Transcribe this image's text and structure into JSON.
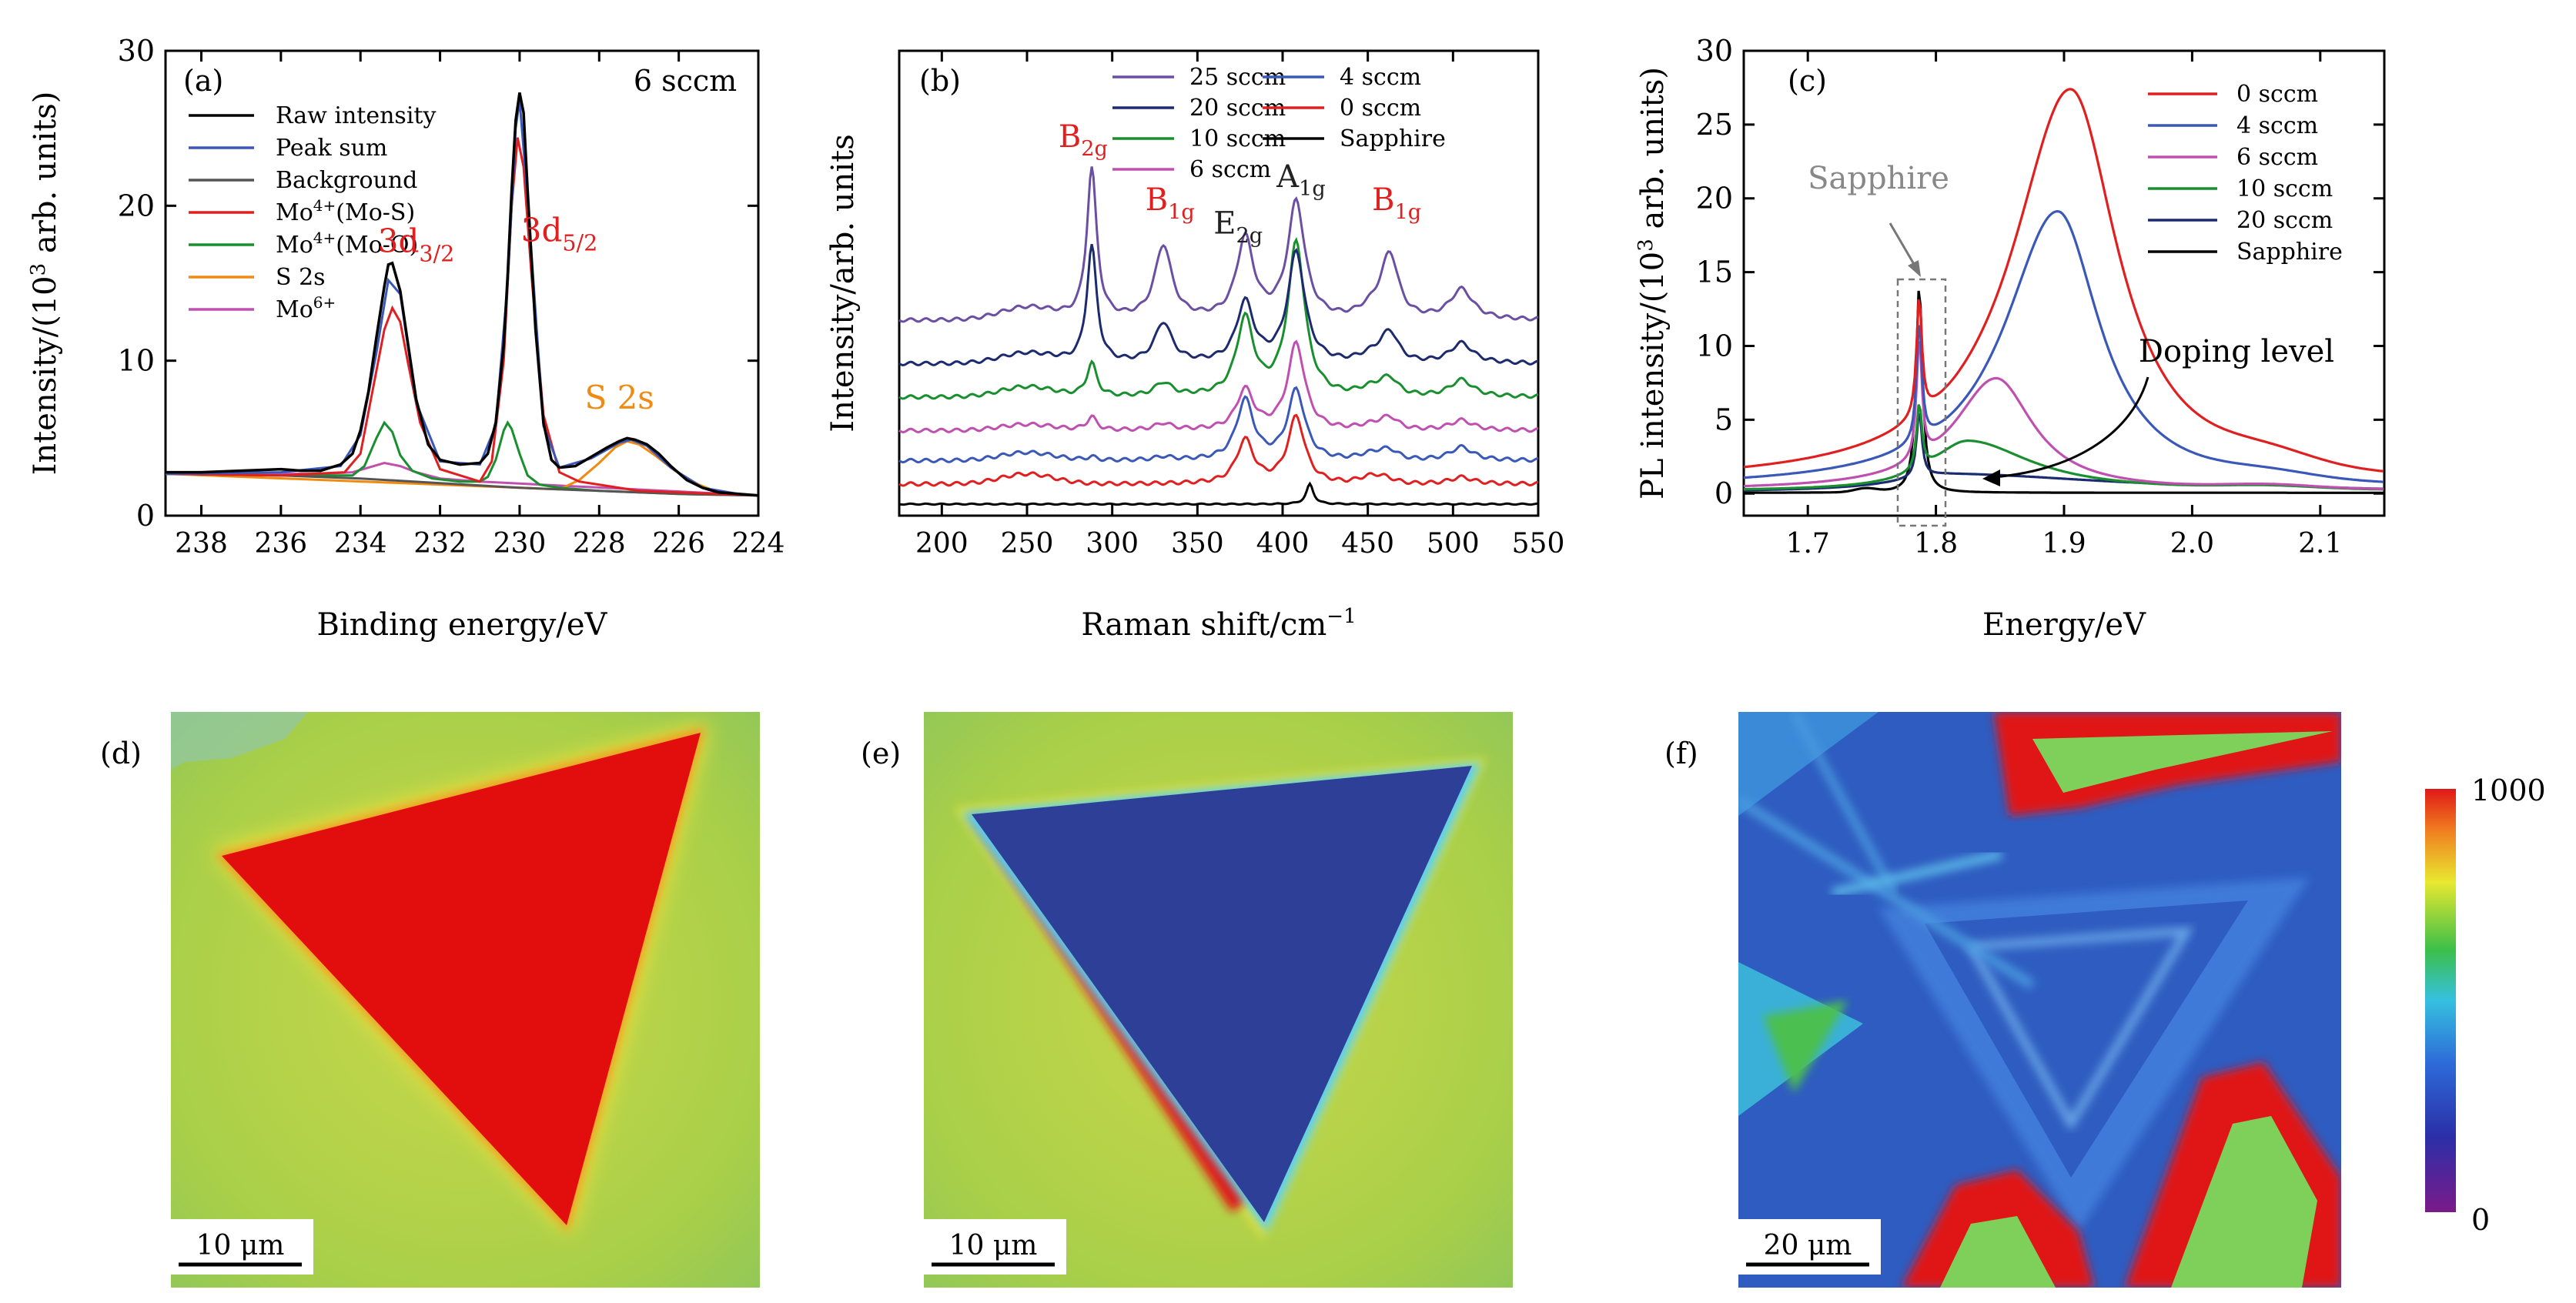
{
  "chart_data": [
    {
      "panel": "(a)",
      "type": "line",
      "annotation": "6 sccm",
      "xlabel": "Binding energy/eV",
      "ylabel_main": "Intensity/(10",
      "ylabel_sup": "3",
      "ylabel_tail": " arb. units)",
      "xlim": [
        238.9,
        224
      ],
      "ylim": [
        0,
        30
      ],
      "xticks": [
        238,
        236,
        234,
        232,
        230,
        228,
        226,
        224
      ],
      "yticks": [
        0,
        10,
        20,
        30
      ],
      "legend": [
        {
          "label": "Raw intensity",
          "color": "#000000"
        },
        {
          "label": "Peak sum",
          "color": "#3a58b8"
        },
        {
          "label": "Background",
          "color": "#555555"
        },
        {
          "label": "Mo4+(Mo-S)",
          "color": "#e02020"
        },
        {
          "label": "Mo4+(Mo-O)",
          "color": "#1a8f2f"
        },
        {
          "label": "S 2s",
          "color": "#f08a10"
        },
        {
          "label": "Mo6+",
          "color": "#c050b0"
        }
      ],
      "peak_labels": [
        {
          "text": "3d",
          "sub": "3/2",
          "x": 232.5,
          "y": 17,
          "color": "#e02020"
        },
        {
          "text": "3d",
          "sub": "5/2",
          "x": 228.9,
          "y": 17.7,
          "color": "#e02020"
        },
        {
          "text": "S 2s",
          "sub": "",
          "x": 227.3,
          "y": 6.9,
          "color": "#f08a10"
        }
      ],
      "series": [
        {
          "name": "Raw intensity",
          "color": "#000000",
          "x": [
            238.9,
            238,
            237,
            236,
            235.5,
            235,
            234.5,
            234.2,
            234,
            233.8,
            233.6,
            233.4,
            233.3,
            233.2,
            233.0,
            232.8,
            232.6,
            232.3,
            232,
            231.5,
            231,
            230.8,
            230.6,
            230.4,
            230.3,
            230.2,
            230.1,
            230.0,
            229.9,
            229.8,
            229.6,
            229.4,
            229.2,
            229,
            228.6,
            228.2,
            227.8,
            227.5,
            227.3,
            227.1,
            226.8,
            226.5,
            226.2,
            225.8,
            225.4,
            225,
            224.5,
            224
          ],
          "y": [
            2.8,
            2.8,
            2.9,
            3.0,
            2.9,
            2.9,
            3.3,
            4.0,
            5.5,
            8.0,
            11.5,
            14.8,
            16.2,
            16.3,
            14.5,
            11.0,
            7.5,
            4.6,
            3.6,
            3.3,
            3.4,
            4.0,
            6.0,
            11.0,
            15.5,
            21.0,
            25.5,
            27.3,
            26.0,
            21.0,
            12.0,
            6.0,
            3.6,
            3.1,
            3.2,
            3.8,
            4.4,
            4.8,
            5.0,
            4.9,
            4.6,
            4.0,
            3.2,
            2.3,
            1.8,
            1.5,
            1.4,
            1.3
          ]
        },
        {
          "name": "Peak sum",
          "color": "#3a58b8",
          "x": [
            238.9,
            236,
            234.5,
            234,
            233.6,
            233.3,
            233.0,
            232.6,
            232,
            231,
            230.6,
            230.3,
            230.1,
            230.0,
            229.8,
            229.4,
            229,
            228.2,
            227.5,
            227.2,
            226.8,
            226.2,
            225.4,
            224.5,
            224
          ],
          "y": [
            2.7,
            2.8,
            3.2,
            5.2,
            10.5,
            15.2,
            14.3,
            7.3,
            3.5,
            3.3,
            5.8,
            15.0,
            25.0,
            26.8,
            20.5,
            5.8,
            3.1,
            3.7,
            4.7,
            4.9,
            4.5,
            3.1,
            1.8,
            1.4,
            1.3
          ]
        },
        {
          "name": "Background",
          "color": "#555555",
          "x": [
            238.9,
            236,
            234,
            232,
            230,
            228,
            226,
            224
          ],
          "y": [
            2.7,
            2.6,
            2.4,
            2.1,
            1.8,
            1.6,
            1.4,
            1.3
          ]
        },
        {
          "name": "Mo4+(Mo-S)",
          "color": "#e02020",
          "x": [
            238.9,
            236,
            234.4,
            234,
            233.7,
            233.4,
            233.2,
            233.0,
            232.8,
            232.5,
            232,
            231,
            230.7,
            230.4,
            230.2,
            230.05,
            229.9,
            229.7,
            229.4,
            229,
            228.5,
            227,
            225,
            224
          ],
          "y": [
            2.7,
            2.6,
            2.8,
            4.0,
            8.0,
            12.0,
            13.4,
            12.5,
            9.8,
            6.0,
            3.0,
            2.2,
            3.5,
            10.0,
            20.0,
            24.4,
            22.5,
            15.5,
            6.5,
            2.8,
            2.2,
            1.6,
            1.4,
            1.3
          ]
        },
        {
          "name": "Mo4+(Mo-O)",
          "color": "#1a8f2f",
          "x": [
            238.9,
            236,
            234.2,
            233.9,
            233.6,
            233.4,
            233.2,
            233.0,
            232.7,
            232.2,
            231.5,
            231,
            230.8,
            230.6,
            230.4,
            230.3,
            230.2,
            230.0,
            229.8,
            229.5,
            229,
            228,
            226,
            224
          ],
          "y": [
            2.7,
            2.6,
            2.6,
            3.2,
            5.0,
            6.0,
            5.4,
            3.9,
            2.9,
            2.4,
            2.2,
            2.2,
            2.5,
            3.6,
            5.5,
            6.0,
            5.6,
            4.0,
            2.6,
            2.0,
            1.8,
            1.6,
            1.4,
            1.3
          ]
        },
        {
          "name": "S 2s",
          "color": "#f08a10",
          "x": [
            238.9,
            229,
            228.5,
            228,
            227.6,
            227.3,
            227.0,
            226.6,
            226.1,
            225.5,
            225,
            224
          ],
          "y": [
            2.7,
            1.7,
            2.3,
            3.4,
            4.4,
            4.8,
            4.6,
            3.9,
            2.9,
            2.0,
            1.5,
            1.3
          ]
        },
        {
          "name": "Mo6+",
          "color": "#c050b0",
          "x": [
            238.9,
            235,
            234.2,
            233.8,
            233.4,
            233.0,
            232.6,
            232.0,
            231,
            224
          ],
          "y": [
            2.7,
            2.7,
            2.8,
            3.1,
            3.4,
            3.2,
            2.8,
            2.4,
            2.2,
            1.3
          ]
        }
      ]
    },
    {
      "panel": "(b)",
      "type": "line",
      "xlabel": "Raman shift/cm",
      "xlabel_sup": "−1",
      "ylabel": "Intensity/arb. units",
      "xlim": [
        175,
        550
      ],
      "ylim": [
        0,
        13
      ],
      "xticks": [
        200,
        250,
        300,
        350,
        400,
        450,
        500,
        550
      ],
      "legend": [
        {
          "label": "25 sccm",
          "color": "#6a4fa3"
        },
        {
          "label": "20 sccm",
          "color": "#1c2a6e"
        },
        {
          "label": "10 sccm",
          "color": "#1a8f2f"
        },
        {
          "label": "6 sccm",
          "color": "#c050b0"
        },
        {
          "label": "4 sccm",
          "color": "#3a58b8"
        },
        {
          "label": "0 sccm",
          "color": "#e02020"
        },
        {
          "label": "Sapphire",
          "color": "#000000"
        }
      ],
      "peak_labels": [
        {
          "text": "B",
          "sub": "2g",
          "x": 282,
          "y": 10.7,
          "color": "#e02020"
        },
        {
          "text": "B",
          "sub": "1g",
          "x": 333,
          "y": 8.8,
          "color": "#e02020"
        },
        {
          "text": "E",
          "sub": "2g",
          "x": 373,
          "y": 8.1,
          "color": "#222222"
        },
        {
          "text": "A",
          "sub": "1g",
          "x": 410,
          "y": 9.5,
          "color": "#222222"
        },
        {
          "text": "B",
          "sub": "1g",
          "x": 466,
          "y": 8.8,
          "color": "#e02020"
        }
      ],
      "peak_positions": [
        288,
        330,
        378,
        408,
        463,
        505
      ],
      "series": [
        {
          "name": "25 sccm",
          "color": "#6a4fa3",
          "baseline": 5.5,
          "amps": [
            4.5,
            2.2,
            2.4,
            3.5,
            1.8,
            0.9
          ],
          "broad": 0.6
        },
        {
          "name": "20 sccm",
          "color": "#1c2a6e",
          "baseline": 4.2,
          "amps": [
            3.5,
            1.2,
            1.8,
            3.3,
            0.8,
            0.6
          ],
          "broad": 0.5
        },
        {
          "name": "10 sccm",
          "color": "#1a8f2f",
          "baseline": 3.2,
          "amps": [
            1.0,
            0.4,
            2.3,
            4.6,
            0.4,
            0.5
          ],
          "broad": 0.5
        },
        {
          "name": "6 sccm",
          "color": "#c050b0",
          "baseline": 2.2,
          "amps": [
            0.4,
            0.2,
            1.2,
            2.6,
            0.3,
            0.3
          ],
          "broad": 0.3
        },
        {
          "name": "4 sccm",
          "color": "#3a58b8",
          "baseline": 1.3,
          "amps": [
            0.1,
            0.1,
            1.8,
            2.1,
            0.2,
            0.4
          ],
          "broad": 0.4
        },
        {
          "name": "0 sccm",
          "color": "#e02020",
          "baseline": 0.6,
          "amps": [
            0.0,
            0.0,
            1.3,
            2.0,
            0.0,
            0.2
          ],
          "broad": 0.5
        },
        {
          "name": "Sapphire",
          "color": "#000000",
          "baseline": 0.0,
          "amps": [
            0,
            0,
            0,
            0,
            0,
            0
          ],
          "broad": 0,
          "sapphire": [
            416,
            0.6
          ]
        }
      ]
    },
    {
      "panel": "(c)",
      "type": "line",
      "xlabel": "Energy/eV",
      "ylabel_main": "PL intensity/(10",
      "ylabel_sup": "3",
      "ylabel_tail": " arb. units)",
      "xlim": [
        1.65,
        2.15
      ],
      "ylim": [
        -1.5,
        30
      ],
      "xticks": [
        1.7,
        1.8,
        1.9,
        2.0,
        2.1
      ],
      "yticks": [
        0,
        5,
        10,
        15,
        20,
        25,
        30
      ],
      "legend": [
        {
          "label": "0 sccm",
          "color": "#e02020"
        },
        {
          "label": "4 sccm",
          "color": "#3a58b8"
        },
        {
          "label": "6 sccm",
          "color": "#c050b0"
        },
        {
          "label": "10 sccm",
          "color": "#1a8f2f"
        },
        {
          "label": "20 sccm",
          "color": "#1c2a6e"
        },
        {
          "label": "Sapphire",
          "color": "#000000"
        }
      ],
      "annotations": [
        "Sapphire",
        "Doping level"
      ],
      "series": [
        {
          "name": "0 sccm",
          "color": "#e02020",
          "peak": 1.905,
          "amp": 26.8,
          "wl": 0.055,
          "wr": 0.045,
          "tail": 1.5
        },
        {
          "name": "4 sccm",
          "color": "#3a58b8",
          "peak": 1.895,
          "amp": 18.8,
          "wl": 0.05,
          "wr": 0.04,
          "tail": 0.8
        },
        {
          "name": "6 sccm",
          "color": "#c050b0",
          "peak": 1.847,
          "amp": 7.6,
          "wl": 0.04,
          "wr": 0.035,
          "tail": 0.5
        },
        {
          "name": "10 sccm",
          "color": "#1a8f2f",
          "peak": 1.825,
          "amp": 3.4,
          "wl": 0.035,
          "wr": 0.06,
          "tail": 0.4
        },
        {
          "name": "20 sccm",
          "color": "#1c2a6e",
          "peak": 1.81,
          "amp": 1.2,
          "wl": 0.05,
          "wr": 0.15,
          "tail": 0.3
        },
        {
          "name": "Sapphire",
          "color": "#000000",
          "peak": 1.787,
          "amp": 14.5,
          "wl": 0.003,
          "wr": 0.003,
          "tail": 0.0
        }
      ]
    }
  ],
  "maps": [
    {
      "panel": "(d)",
      "scale": "10 μm"
    },
    {
      "panel": "(e)",
      "scale": "10 μm"
    },
    {
      "panel": "(f)",
      "scale": "20 μm"
    }
  ],
  "colorbar": {
    "max": "1000",
    "min": "0"
  }
}
